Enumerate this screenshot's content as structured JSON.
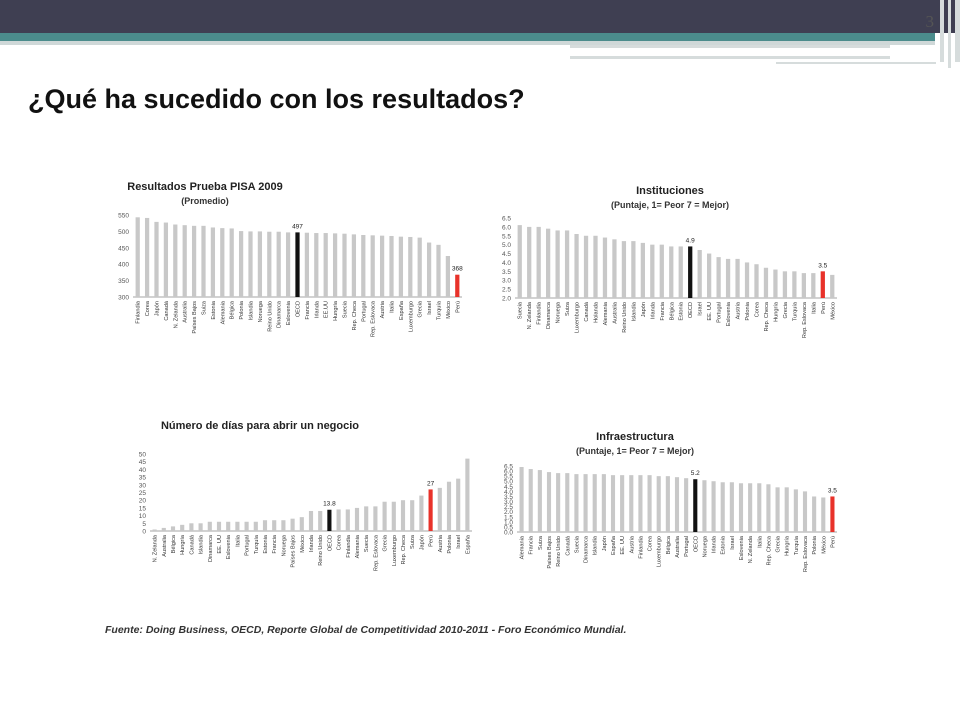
{
  "slide": {
    "number": "3",
    "title": "¿Qué ha sucedido con los resultados?",
    "source": "Fuente: Doing Business, OECD, Reporte Global de Competitividad 2010-2011 - Foro Económico Mundial."
  },
  "colors": {
    "bar": "#c8c8c8",
    "highlight_oecd": "#111111",
    "highlight_peru": "#e8322a",
    "header": "#3f3f52",
    "accent": "#4b8c8c"
  },
  "chart_data": [
    {
      "id": "pisa",
      "type": "bar",
      "title": "Resultados Prueba PISA 2009",
      "subtitle": "(Promedio)",
      "yticks": [
        "550",
        "500",
        "450",
        "400",
        "350",
        "300"
      ],
      "ylim": [
        300,
        550
      ],
      "categories": [
        "Finlandia",
        "Corea",
        "Japón",
        "Canadá",
        "N. Zelanda",
        "Australia",
        "Países Bajos",
        "Suiza",
        "Estonia",
        "Alemania",
        "Bélgica",
        "Polonia",
        "Islandia",
        "Noruega",
        "Reino Unido",
        "Dinamarca",
        "Eslovenia",
        "OECD",
        "Francia",
        "Irlanda",
        "EE.UU",
        "Hungría",
        "Suecia",
        "Rep. Checa",
        "Portugal",
        "Rep. Eslovaca",
        "Austria",
        "Italia",
        "España",
        "Luxemburgo",
        "Grecia",
        "Israel",
        "Turquía",
        "México",
        "Perú"
      ],
      "values": [
        543,
        541,
        529,
        527,
        521,
        519,
        517,
        517,
        512,
        510,
        509,
        501,
        500,
        500,
        499,
        499,
        497,
        497,
        496,
        495,
        495,
        494,
        493,
        491,
        489,
        488,
        487,
        486,
        484,
        483,
        481,
        466,
        459,
        425,
        368
      ],
      "highlight": {
        "OECD": "497",
        "Perú": "368"
      }
    },
    {
      "id": "instituciones",
      "type": "bar",
      "title": "Instituciones",
      "subtitle": "(Puntaje, 1= Peor 7 = Mejor)",
      "yticks": [
        "6.5",
        "6.0",
        "5.5",
        "5.0",
        "4.5",
        "4.0",
        "3.5",
        "3.0",
        "2.5",
        "2.0"
      ],
      "ylim": [
        2.0,
        6.5
      ],
      "categories": [
        "Suecia",
        "N. Zelanda",
        "Finlandia",
        "Dinamarca",
        "Noruega",
        "Suiza",
        "Luxemburgo",
        "Canadá",
        "Holanda",
        "Alemania",
        "Australia",
        "Reino Unido",
        "Islandia",
        "Japón",
        "Irlanda",
        "Francia",
        "Bélgica",
        "Estonia",
        "OECD",
        "Israel",
        "EE. UU",
        "Portugal",
        "Eslovenia",
        "Austria",
        "Polonia",
        "Corea",
        "Rep. Checa",
        "Hungría",
        "Grecia",
        "Turquía",
        "Rep. Eslovaca",
        "Italia",
        "Perú",
        "México"
      ],
      "values": [
        6.1,
        6.0,
        6.0,
        5.9,
        5.8,
        5.8,
        5.6,
        5.5,
        5.5,
        5.4,
        5.3,
        5.2,
        5.2,
        5.1,
        5.0,
        5.0,
        4.9,
        4.9,
        4.9,
        4.7,
        4.5,
        4.3,
        4.2,
        4.2,
        4.0,
        3.9,
        3.7,
        3.6,
        3.5,
        3.5,
        3.4,
        3.4,
        3.5,
        3.3
      ],
      "highlight": {
        "OECD": "4.9",
        "Perú": "3.5"
      }
    },
    {
      "id": "dias_negocio",
      "type": "bar",
      "title": "Número de días para abrir un negocio",
      "subtitle": "",
      "yticks": [
        "50",
        "45",
        "40",
        "35",
        "30",
        "25",
        "20",
        "15",
        "10",
        "5",
        "0"
      ],
      "ylim": [
        0,
        50
      ],
      "categories": [
        "N. Zelanda",
        "Australia",
        "Bélgica",
        "Hungría",
        "Canadá",
        "Islandia",
        "Dinamarca",
        "EE. UU",
        "Eslovenia",
        "Italia",
        "Portugal",
        "Turquía",
        "Estonia",
        "Francia",
        "Noruega",
        "Países Bajos",
        "México",
        "Irlanda",
        "Reino Unido",
        "OECD",
        "Corea",
        "Finlandia",
        "Alemania",
        "Suecia",
        "Rep. Eslovaca",
        "Grecia",
        "Luxemburgo",
        "Rep. Checa",
        "Suiza",
        "Japón",
        "Perú",
        "Austria",
        "Polonia",
        "Israel",
        "España"
      ],
      "values": [
        1,
        2,
        3,
        4,
        5,
        5,
        6,
        6,
        6,
        6,
        6,
        6,
        7,
        7,
        7,
        8,
        9,
        13,
        13,
        13.8,
        14,
        14,
        15,
        16,
        16,
        19,
        19,
        20,
        20,
        23,
        27,
        28,
        32,
        34,
        47
      ],
      "highlight": {
        "OECD": "13.8",
        "Perú": "27"
      }
    },
    {
      "id": "infraestructura",
      "type": "bar",
      "title": "Infraestructura",
      "subtitle": "(Puntaje, 1= Peor 7 = Mejor)",
      "yticks": [
        "6.5",
        "6.0",
        "5.5",
        "5.0",
        "4.5",
        "4.0",
        "3.5",
        "3.0",
        "2.5",
        "2.0",
        "1.5",
        "1.0",
        "0.5",
        "0.0"
      ],
      "ylim": [
        0,
        6.5
      ],
      "categories": [
        "Alemania",
        "Francia",
        "Suiza",
        "Países Bajos",
        "Reino Unido",
        "Canadá",
        "Suecia",
        "Dinamarca",
        "Islandia",
        "Japón",
        "España",
        "EE. UU",
        "Austria",
        "Finlandia",
        "Corea",
        "Luxemburgo",
        "Bélgica",
        "Australia",
        "Portugal",
        "OECD",
        "Noruega",
        "Irlanda",
        "Estonia",
        "Israel",
        "Eslovenia",
        "N. Zelanda",
        "Italia",
        "Rep. Checa",
        "Grecia",
        "Hungría",
        "Turquía",
        "Rep. Eslovaca",
        "Polonia",
        "México",
        "Perú"
      ],
      "values": [
        6.4,
        6.2,
        6.1,
        5.9,
        5.8,
        5.8,
        5.7,
        5.7,
        5.7,
        5.7,
        5.6,
        5.6,
        5.6,
        5.6,
        5.6,
        5.5,
        5.5,
        5.4,
        5.3,
        5.2,
        5.1,
        5.0,
        4.9,
        4.9,
        4.8,
        4.8,
        4.8,
        4.7,
        4.4,
        4.4,
        4.2,
        4.0,
        3.5,
        3.4,
        3.5
      ],
      "highlight": {
        "OECD": "5.2",
        "Perú": "3.5"
      }
    }
  ]
}
